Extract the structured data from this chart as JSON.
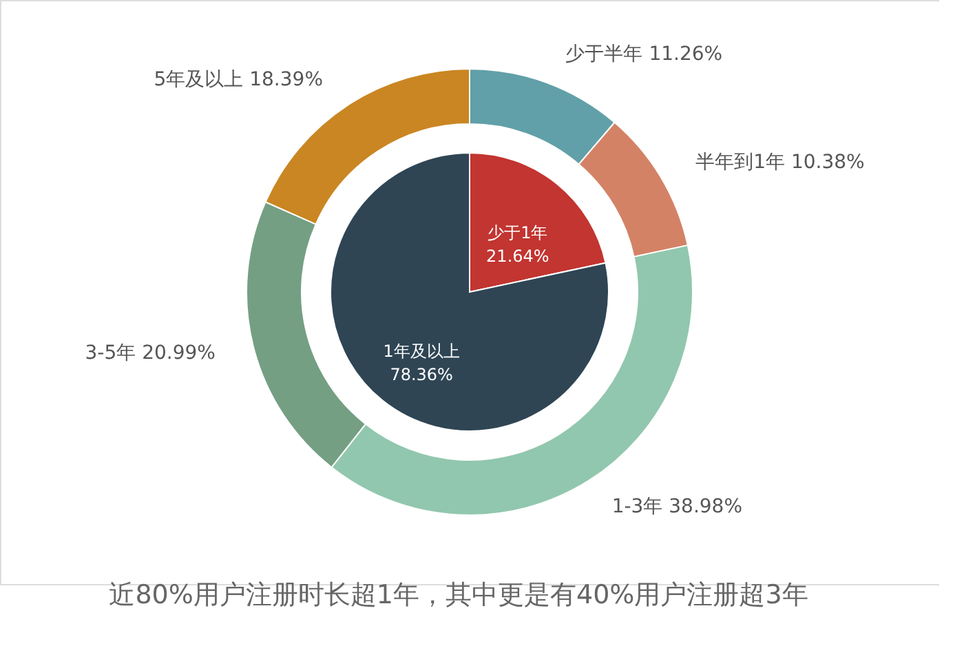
{
  "chart_data": {
    "type": "donut",
    "legend": false,
    "categories": [
      "少于1年",
      "1年及以上",
      "少于半年",
      "半年到1年",
      "1-3年",
      "3-5年",
      "5年及以上"
    ],
    "colors": [
      "#c23531",
      "#2f4554",
      "#61a0a8",
      "#d48265",
      "#91c7ae",
      "#749f83",
      "#ca8622"
    ],
    "series": [
      {
        "type": "pie",
        "values": [
          21.64,
          78.36,
          null,
          null,
          null,
          null,
          null
        ],
        "value_labels": [
          "21.64%",
          "78.36%",
          null,
          null,
          null,
          null,
          null
        ]
      },
      {
        "values": [
          null,
          null,
          11.26,
          10.38,
          38.98,
          20.99,
          18.39
        ],
        "value_labels": [
          null,
          null,
          "11.26%",
          "10.38%",
          "38.98%",
          "20.99%",
          "18.39%"
        ]
      }
    ],
    "annotations": [
      "近80%用户注册时长超1年，其中更是有40%用户注册超3年"
    ]
  }
}
